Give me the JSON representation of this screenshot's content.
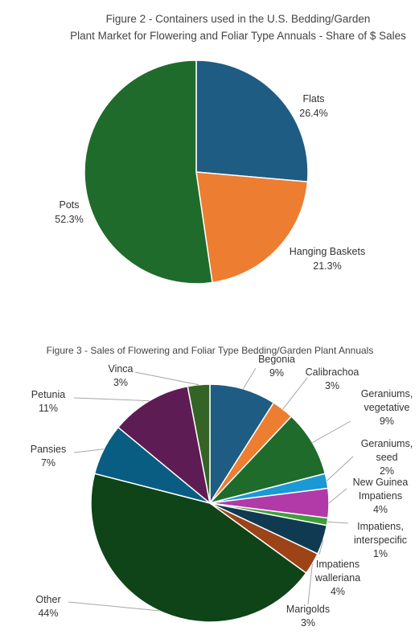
{
  "chart_data": [
    {
      "type": "pie",
      "title": "Figure 2 - Containers used in the U.S. Bedding/Garden Plant Market for Flowering and Foliar Type Annuals - Share of $ Sales",
      "title_lines": [
        "Figure 2 - Containers used in the U.S. Bedding/Garden",
        "Plant Market for Flowering and Foliar Type Annuals - Share of $ Sales"
      ],
      "start": "12 o'clock, clockwise",
      "slices": [
        {
          "label_lines": [
            "Flats"
          ],
          "percent_label": "26.4%",
          "value": 26.4,
          "color": "#1f5c84"
        },
        {
          "label_lines": [
            "Hanging Baskets"
          ],
          "percent_label": "21.3%",
          "value": 21.3,
          "color": "#ed7d31"
        },
        {
          "label_lines": [
            "Pots"
          ],
          "percent_label": "52.3%",
          "value": 52.3,
          "color": "#1f6b2b"
        }
      ]
    },
    {
      "type": "pie",
      "title": "Figure 3 - Sales of  Flowering and Foliar Type Bedding/Garden Plant Annuals",
      "start": "12 o'clock, clockwise",
      "slices": [
        {
          "label_lines": [
            "Begonia"
          ],
          "percent_label": "9%",
          "value": 9,
          "color": "#1f5c84"
        },
        {
          "label_lines": [
            "Calibrachoa"
          ],
          "percent_label": "3%",
          "value": 3,
          "color": "#ed7d31"
        },
        {
          "label_lines": [
            "Geraniums,",
            "vegetative"
          ],
          "percent_label": "9%",
          "value": 9,
          "color": "#1f6b2b"
        },
        {
          "label_lines": [
            "Geraniums,",
            "seed"
          ],
          "percent_label": "2%",
          "value": 2,
          "color": "#1b98d6"
        },
        {
          "label_lines": [
            "New Guinea",
            "Impatiens"
          ],
          "percent_label": "4%",
          "value": 4,
          "color": "#b239a8"
        },
        {
          "label_lines": [
            "Impatiens,",
            "interspecific"
          ],
          "percent_label": "1%",
          "value": 1,
          "color": "#3e9f3a"
        },
        {
          "label_lines": [
            "Impatiens",
            "walleriana"
          ],
          "percent_label": "4%",
          "value": 4,
          "color": "#0f3a52"
        },
        {
          "label_lines": [
            "Marigolds"
          ],
          "percent_label": "3%",
          "value": 3,
          "color": "#9c4318"
        },
        {
          "label_lines": [
            "Other"
          ],
          "percent_label": "44%",
          "value": 44,
          "color": "#0e4417"
        },
        {
          "label_lines": [
            "Pansies"
          ],
          "percent_label": "7%",
          "value": 7,
          "color": "#095d82"
        },
        {
          "label_lines": [
            "Petunia"
          ],
          "percent_label": "11%",
          "value": 11,
          "color": "#5e1c54"
        },
        {
          "label_lines": [
            "Vinca"
          ],
          "percent_label": "3%",
          "value": 3,
          "color": "#336425"
        }
      ]
    }
  ]
}
